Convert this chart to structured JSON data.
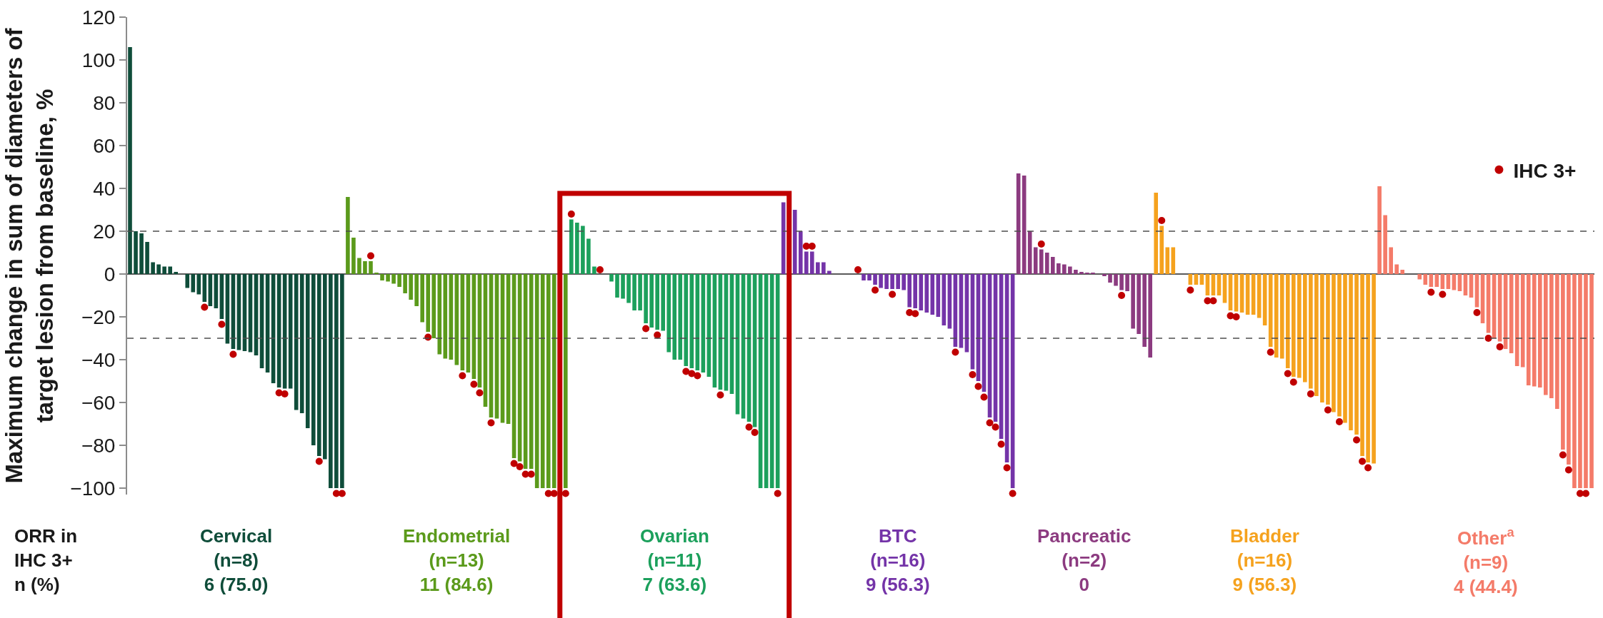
{
  "chart_data": {
    "type": "bar",
    "ylabel": "Maximum change in sum of diameters of\ntarget lesion from baseline, %",
    "categories": [
      null,
      null,
      null,
      null,
      null,
      null,
      null,
      null,
      null,
      null,
      null,
      null,
      null,
      null,
      null,
      null,
      null,
      null,
      null,
      null,
      null,
      null,
      null,
      null,
      null,
      null,
      null,
      null,
      null,
      null,
      null,
      null,
      null,
      null,
      null,
      null,
      null,
      null,
      null,
      null,
      null,
      null,
      null,
      null,
      null,
      null,
      null,
      null,
      null,
      null,
      null,
      null,
      null,
      null,
      null,
      null,
      null,
      null,
      null,
      null,
      null,
      null,
      null,
      null,
      null,
      null,
      null,
      null,
      null,
      null,
      null,
      null,
      null,
      null,
      null,
      null,
      null,
      null,
      null,
      null,
      null,
      null,
      null,
      null,
      null,
      null,
      null,
      null,
      null,
      null,
      null,
      null,
      null,
      null,
      null,
      null,
      null,
      null,
      null,
      null,
      null,
      null,
      null,
      null,
      null,
      null,
      null,
      null,
      null,
      null,
      null,
      null,
      null,
      null,
      null,
      null,
      null,
      null,
      null,
      null,
      null,
      null,
      null,
      null,
      null,
      null,
      null,
      null,
      null,
      null,
      null,
      null,
      null,
      null,
      null,
      null,
      null,
      null,
      null,
      null,
      null,
      null,
      null,
      null,
      null,
      null,
      null,
      null,
      null,
      null,
      null,
      null,
      null,
      null,
      null,
      null,
      null,
      null,
      null,
      null,
      null,
      null,
      null,
      null,
      null,
      null,
      null,
      null,
      null,
      null,
      null,
      null,
      null,
      null,
      null,
      null,
      null,
      null,
      null,
      null,
      null,
      null,
      null,
      null,
      null,
      null,
      null,
      null,
      null,
      null,
      null,
      null,
      null,
      null,
      null,
      null,
      null,
      null,
      null,
      null,
      null,
      null,
      null,
      null,
      null,
      null,
      null,
      null,
      null,
      null,
      null,
      null,
      null,
      null,
      null,
      null,
      null,
      null,
      null,
      null,
      null,
      null,
      null,
      null,
      null,
      null,
      null,
      null,
      null,
      null,
      null,
      null,
      null,
      null,
      null,
      null,
      null,
      null,
      null,
      null,
      null,
      null,
      null,
      null,
      null,
      null,
      null,
      null,
      null,
      null,
      null,
      null,
      null,
      null,
      null,
      null
    ],
    "series": [
      {
        "name": "Cervical\n(n=8)\n6 (75.0)",
        "color": "#0f4d3a",
        "values": [
          106,
          20,
          19,
          15,
          5.5,
          4.5,
          3.5,
          3.5,
          1,
          null,
          -6.5,
          -8.5,
          -9.5,
          -13,
          -15,
          -16,
          -21,
          -32.5,
          -35,
          -35.5,
          -36,
          -36.5,
          -38,
          -44,
          -46,
          -51,
          -53,
          -53.5,
          -53.5,
          -63.5,
          -65,
          -72,
          -80,
          -85,
          -86.5,
          -100,
          -100,
          -100,
          null,
          null,
          null,
          null,
          null,
          null,
          null,
          null,
          null,
          null,
          null,
          null,
          null,
          null,
          null,
          null,
          null,
          null,
          null,
          null,
          null,
          null,
          null,
          null,
          null,
          null,
          null,
          null,
          null,
          null,
          null,
          null,
          null,
          null,
          null,
          null,
          null,
          null,
          null,
          null,
          null,
          null,
          null,
          null,
          null,
          null,
          null,
          null,
          null,
          null,
          null,
          null,
          null,
          null,
          null,
          null,
          null,
          null,
          null,
          null,
          null,
          null,
          null,
          null,
          null,
          null,
          null,
          null,
          null,
          null,
          null,
          null,
          null,
          null,
          null,
          null,
          null,
          null,
          null,
          null,
          null,
          null,
          null,
          null,
          null,
          null,
          null,
          null,
          null,
          null,
          null,
          null,
          null,
          null,
          null,
          null,
          null,
          null,
          null,
          null,
          null,
          null,
          null,
          null,
          null,
          null,
          null,
          null,
          null,
          null,
          null,
          null,
          null,
          null,
          null,
          null,
          null,
          null,
          null,
          null,
          null,
          null,
          null,
          null,
          null,
          null,
          null,
          null,
          null,
          null,
          null,
          null,
          null,
          null,
          null,
          null,
          null,
          null,
          null,
          null,
          null,
          null,
          null,
          null,
          null,
          null,
          null,
          null,
          null,
          null,
          null,
          null,
          null,
          null,
          null,
          null,
          null,
          null,
          null,
          null,
          null,
          null,
          null,
          null,
          null,
          null,
          null,
          null,
          null,
          null,
          null,
          null,
          null,
          null,
          null,
          null,
          null,
          null,
          null,
          null,
          null,
          null,
          null,
          null,
          null,
          null,
          null,
          null,
          null,
          null,
          null,
          null,
          null,
          null,
          null,
          null,
          null,
          null,
          null,
          null,
          null,
          null,
          null,
          null,
          null,
          null,
          null,
          null,
          null,
          null,
          null,
          null,
          null,
          null,
          null,
          null,
          null,
          null
        ]
      },
      {
        "name": "Endometrial\n(n=13)\n11 (84.6)",
        "color": "#5b9a1b",
        "values": [
          null,
          null,
          null,
          null,
          null,
          null,
          null,
          null,
          null,
          null,
          null,
          null,
          null,
          null,
          null,
          null,
          null,
          null,
          null,
          null,
          null,
          null,
          null,
          null,
          null,
          null,
          null,
          null,
          null,
          null,
          null,
          null,
          null,
          null,
          null,
          null,
          null,
          null,
          36,
          17,
          7.5,
          6,
          6,
          0.5,
          -3,
          -3.5,
          -4.5,
          -6,
          -9,
          -12,
          -15,
          -22.5,
          -27,
          -30,
          -37.5,
          -39.5,
          -40,
          -42.5,
          -45,
          -46,
          -49,
          -53,
          -62,
          -67,
          -67.5,
          -69.5,
          -70,
          -86,
          -87.5,
          -91,
          -91,
          -100,
          -100,
          -100,
          -100,
          null,
          -100,
          null,
          null,
          null,
          null,
          null,
          null,
          null,
          null,
          null,
          null,
          null,
          null,
          null,
          null,
          null,
          null,
          null,
          null,
          null,
          null,
          null,
          null,
          null,
          null,
          null,
          null,
          null,
          null,
          null,
          null,
          null,
          null,
          null,
          null,
          null,
          null,
          null,
          null,
          null,
          null,
          null,
          null,
          null,
          null,
          null,
          null,
          null,
          null,
          null,
          null,
          null,
          null,
          null,
          null,
          null,
          null,
          null,
          null,
          null,
          null,
          null,
          null,
          null,
          null,
          null,
          null,
          null,
          null,
          null,
          null,
          null,
          null,
          null,
          null,
          null,
          null,
          null,
          null,
          null,
          null,
          null,
          null,
          null,
          null,
          null,
          null,
          null,
          null,
          null,
          null,
          null,
          null,
          null,
          null,
          null,
          null,
          null,
          null,
          null,
          null,
          null,
          null,
          null,
          null,
          null,
          null,
          null,
          null,
          null,
          null,
          null,
          null,
          null,
          null,
          null,
          null,
          null,
          null,
          null,
          null,
          null,
          null,
          null,
          null,
          null,
          null,
          null,
          null,
          null,
          null,
          null,
          null,
          null,
          null,
          null,
          null,
          null,
          null,
          null,
          null,
          null,
          null,
          null,
          null,
          null,
          null,
          null,
          null,
          null,
          null,
          null,
          null,
          null,
          null,
          null,
          null,
          null,
          null,
          null,
          null,
          null,
          null,
          null,
          null,
          null,
          null,
          null,
          null,
          null,
          null,
          null,
          null,
          null,
          null,
          null,
          null,
          null,
          null,
          null
        ]
      },
      {
        "name": "Ovarian\n(n=11)\n7 (63.6)",
        "color": "#1ca05c",
        "values": [
          null,
          null,
          null,
          null,
          null,
          null,
          null,
          null,
          null,
          null,
          null,
          null,
          null,
          null,
          null,
          null,
          null,
          null,
          null,
          null,
          null,
          null,
          null,
          null,
          null,
          null,
          null,
          null,
          null,
          null,
          null,
          null,
          null,
          null,
          null,
          null,
          null,
          null,
          null,
          null,
          null,
          null,
          null,
          null,
          null,
          null,
          null,
          null,
          null,
          null,
          null,
          null,
          null,
          null,
          null,
          null,
          null,
          null,
          null,
          null,
          null,
          null,
          null,
          null,
          null,
          null,
          null,
          null,
          null,
          null,
          null,
          null,
          null,
          null,
          null,
          null,
          null,
          25.5,
          24,
          22.5,
          16.5,
          3.5,
          null,
          null,
          -3.5,
          -11,
          -11.5,
          -13.5,
          -17,
          -17,
          -23,
          -25,
          -26,
          -26.5,
          -36.5,
          -40,
          -40,
          -43,
          -44,
          -45,
          -46,
          -48,
          -53,
          -54,
          -54.5,
          -56,
          -65.5,
          -67.5,
          -69,
          -71.5,
          -100,
          -100,
          -100,
          -100,
          null,
          null,
          null,
          null,
          null,
          null,
          null,
          null,
          null,
          null,
          null,
          null,
          null,
          null,
          null,
          null,
          null,
          null,
          null,
          null,
          null,
          null,
          null,
          null,
          null,
          null,
          null,
          null,
          null,
          null,
          null,
          null,
          null,
          null,
          null,
          null,
          null,
          null,
          null,
          null,
          null,
          null,
          null,
          null,
          null,
          null,
          null,
          null,
          null,
          null,
          null,
          null,
          null,
          null,
          null,
          null,
          null,
          null,
          null,
          null,
          null,
          null,
          null,
          null,
          null,
          null,
          null,
          null,
          null,
          null,
          null,
          null,
          null,
          null,
          null,
          null,
          null,
          null,
          null,
          null,
          null,
          null,
          null,
          null,
          null,
          null,
          null,
          null,
          null,
          null,
          null,
          null,
          null,
          null,
          null,
          null,
          null,
          null,
          null,
          null,
          null,
          null,
          null,
          null,
          null,
          null,
          null,
          null,
          null,
          null,
          null,
          null,
          null,
          null,
          null,
          null,
          null,
          null,
          null,
          null,
          null,
          null,
          null,
          null,
          null,
          null,
          null,
          null,
          null,
          null,
          null,
          null,
          null,
          null,
          null,
          null,
          null,
          null,
          null,
          null,
          null,
          null
        ]
      },
      {
        "name": "BTC\n(n=16)\n9 (56.3)",
        "color": "#7434a8",
        "values": [
          null,
          null,
          null,
          null,
          null,
          null,
          null,
          null,
          null,
          null,
          null,
          null,
          null,
          null,
          null,
          null,
          null,
          null,
          null,
          null,
          null,
          null,
          null,
          null,
          null,
          null,
          null,
          null,
          null,
          null,
          null,
          null,
          null,
          null,
          null,
          null,
          null,
          null,
          null,
          null,
          null,
          null,
          null,
          null,
          null,
          null,
          null,
          null,
          null,
          null,
          null,
          null,
          null,
          null,
          null,
          null,
          null,
          null,
          null,
          null,
          null,
          null,
          null,
          null,
          null,
          null,
          null,
          null,
          null,
          null,
          null,
          null,
          null,
          null,
          null,
          null,
          null,
          null,
          null,
          null,
          null,
          null,
          null,
          null,
          null,
          null,
          null,
          null,
          null,
          null,
          null,
          null,
          null,
          null,
          null,
          null,
          null,
          null,
          null,
          null,
          null,
          null,
          null,
          null,
          null,
          null,
          null,
          null,
          null,
          null,
          null,
          null,
          null,
          null,
          33.5,
          null,
          30,
          20,
          10.5,
          10.5,
          5.5,
          5.5,
          1.5,
          null,
          null,
          null,
          null,
          null,
          -3,
          -3,
          -5,
          -6.5,
          -7,
          -7,
          -7,
          -7.5,
          -15.5,
          -16,
          -17,
          -18,
          -19,
          -20,
          -24,
          -25.5,
          -34,
          -34.5,
          -36.5,
          -44.5,
          -50,
          -55,
          -67,
          -69,
          -77,
          -88,
          -100,
          null,
          null,
          null,
          null,
          null,
          null,
          null,
          null,
          null,
          null,
          null,
          null,
          null,
          null,
          null,
          null,
          null,
          null,
          null,
          null,
          null,
          null,
          null,
          null,
          null,
          null,
          null,
          null,
          null,
          null,
          null,
          null,
          null,
          null,
          null,
          null,
          null,
          null,
          null,
          null,
          null,
          null,
          null,
          null,
          null,
          null,
          null,
          null,
          null,
          null,
          null,
          null,
          null,
          null,
          null,
          null,
          null,
          null,
          null,
          null,
          null,
          null,
          null,
          null,
          null,
          null,
          null,
          null,
          null,
          null,
          null,
          null,
          null,
          null,
          null,
          null,
          null,
          null,
          null,
          null,
          null,
          null,
          null,
          null,
          null,
          null,
          null,
          null,
          null,
          null,
          null,
          null,
          null,
          null,
          null,
          null,
          null,
          null,
          null,
          null,
          null
        ]
      },
      {
        "name": "Pancreatic\n(n=2)\n0",
        "color": "#8c3b80",
        "values": [
          null,
          null,
          null,
          null,
          null,
          null,
          null,
          null,
          null,
          null,
          null,
          null,
          null,
          null,
          null,
          null,
          null,
          null,
          null,
          null,
          null,
          null,
          null,
          null,
          null,
          null,
          null,
          null,
          null,
          null,
          null,
          null,
          null,
          null,
          null,
          null,
          null,
          null,
          null,
          null,
          null,
          null,
          null,
          null,
          null,
          null,
          null,
          null,
          null,
          null,
          null,
          null,
          null,
          null,
          null,
          null,
          null,
          null,
          null,
          null,
          null,
          null,
          null,
          null,
          null,
          null,
          null,
          null,
          null,
          null,
          null,
          null,
          null,
          null,
          null,
          null,
          null,
          null,
          null,
          null,
          null,
          null,
          null,
          null,
          null,
          null,
          null,
          null,
          null,
          null,
          null,
          null,
          null,
          null,
          null,
          null,
          null,
          null,
          null,
          null,
          null,
          null,
          null,
          null,
          null,
          null,
          null,
          null,
          null,
          null,
          null,
          null,
          null,
          null,
          null,
          null,
          null,
          null,
          null,
          null,
          null,
          null,
          null,
          null,
          null,
          null,
          null,
          null,
          null,
          null,
          null,
          null,
          null,
          null,
          null,
          null,
          null,
          null,
          null,
          null,
          null,
          null,
          null,
          null,
          null,
          null,
          null,
          null,
          null,
          null,
          null,
          null,
          null,
          null,
          null,
          47,
          46,
          20,
          12.5,
          11.5,
          10,
          8,
          5,
          4.5,
          3.5,
          2,
          1,
          0.5,
          0.5,
          null,
          -1,
          -4,
          -5.5,
          -7.5,
          -8,
          -25.5,
          -28,
          -34,
          -39,
          null,
          null,
          null,
          null,
          null,
          null,
          null,
          null,
          null,
          null,
          null,
          null,
          null,
          null,
          null,
          null,
          null,
          null,
          null,
          null,
          null,
          null,
          null,
          null,
          null,
          null,
          null,
          null,
          null,
          null,
          null,
          null,
          null,
          null,
          null,
          null,
          null,
          null,
          null,
          null,
          null,
          null,
          null,
          null,
          null,
          null,
          null,
          null,
          null,
          null,
          null,
          null,
          null,
          null,
          null,
          null,
          null,
          null,
          null,
          null,
          null,
          null,
          null,
          null,
          null,
          null,
          null,
          null,
          null,
          null,
          null,
          null,
          null,
          null,
          null,
          null,
          null
        ]
      },
      {
        "name": "Bladder\n(n=16)\n9 (56.3)",
        "color": "#f5a21e",
        "values": [
          null,
          null,
          null,
          null,
          null,
          null,
          null,
          null,
          null,
          null,
          null,
          null,
          null,
          null,
          null,
          null,
          null,
          null,
          null,
          null,
          null,
          null,
          null,
          null,
          null,
          null,
          null,
          null,
          null,
          null,
          null,
          null,
          null,
          null,
          null,
          null,
          null,
          null,
          null,
          null,
          null,
          null,
          null,
          null,
          null,
          null,
          null,
          null,
          null,
          null,
          null,
          null,
          null,
          null,
          null,
          null,
          null,
          null,
          null,
          null,
          null,
          null,
          null,
          null,
          null,
          null,
          null,
          null,
          null,
          null,
          null,
          null,
          null,
          null,
          null,
          null,
          null,
          null,
          null,
          null,
          null,
          null,
          null,
          null,
          null,
          null,
          null,
          null,
          null,
          null,
          null,
          null,
          null,
          null,
          null,
          null,
          null,
          null,
          null,
          null,
          null,
          null,
          null,
          null,
          null,
          null,
          null,
          null,
          null,
          null,
          null,
          null,
          null,
          null,
          null,
          null,
          null,
          null,
          null,
          null,
          null,
          null,
          null,
          null,
          null,
          null,
          null,
          null,
          null,
          null,
          null,
          null,
          null,
          null,
          null,
          null,
          null,
          null,
          null,
          null,
          null,
          null,
          null,
          null,
          null,
          null,
          null,
          null,
          null,
          null,
          null,
          null,
          null,
          null,
          null,
          null,
          null,
          null,
          null,
          null,
          null,
          null,
          null,
          null,
          null,
          null,
          null,
          null,
          null,
          null,
          null,
          null,
          null,
          null,
          null,
          null,
          null,
          null,
          null,
          38,
          22.5,
          12.5,
          12.5,
          null,
          null,
          -5,
          -5,
          -5,
          -10,
          -10,
          -10,
          -13.5,
          -17,
          -17.5,
          -18,
          -19,
          -19,
          -20.5,
          -24,
          -34,
          -39,
          -39.5,
          -44,
          -48,
          -48.5,
          -50.5,
          -53.5,
          -57,
          -60,
          -61,
          -64.5,
          -66.5,
          -69.5,
          -73,
          -75,
          -85,
          -88,
          -88.5,
          null,
          null,
          null,
          null,
          null,
          null,
          null,
          null,
          null,
          null,
          null,
          null,
          null,
          null,
          null,
          null,
          null,
          null,
          null,
          null,
          null,
          null,
          null,
          null,
          null,
          null,
          null,
          null,
          null,
          null,
          null,
          null,
          null,
          null,
          null,
          null,
          null,
          null
        ]
      },
      {
        "name": "Other$^{a}$\n(n=9)\n4 (44.4)",
        "color": "#f47b69",
        "values": [
          null,
          null,
          null,
          null,
          null,
          null,
          null,
          null,
          null,
          null,
          null,
          null,
          null,
          null,
          null,
          null,
          null,
          null,
          null,
          null,
          null,
          null,
          null,
          null,
          null,
          null,
          null,
          null,
          null,
          null,
          null,
          null,
          null,
          null,
          null,
          null,
          null,
          null,
          null,
          null,
          null,
          null,
          null,
          null,
          null,
          null,
          null,
          null,
          null,
          null,
          null,
          null,
          null,
          null,
          null,
          null,
          null,
          null,
          null,
          null,
          null,
          null,
          null,
          null,
          null,
          null,
          null,
          null,
          null,
          null,
          null,
          null,
          null,
          null,
          null,
          null,
          null,
          null,
          null,
          null,
          null,
          null,
          null,
          null,
          null,
          null,
          null,
          null,
          null,
          null,
          null,
          null,
          null,
          null,
          null,
          null,
          null,
          null,
          null,
          null,
          null,
          null,
          null,
          null,
          null,
          null,
          null,
          null,
          null,
          null,
          null,
          null,
          null,
          null,
          null,
          null,
          null,
          null,
          null,
          null,
          null,
          null,
          null,
          null,
          null,
          null,
          null,
          null,
          null,
          null,
          null,
          null,
          null,
          null,
          null,
          null,
          null,
          null,
          null,
          null,
          null,
          null,
          null,
          null,
          null,
          null,
          null,
          null,
          null,
          null,
          null,
          null,
          null,
          null,
          null,
          null,
          null,
          null,
          null,
          null,
          null,
          null,
          null,
          null,
          null,
          null,
          null,
          null,
          null,
          null,
          null,
          null,
          null,
          null,
          null,
          null,
          null,
          null,
          null,
          null,
          null,
          null,
          null,
          null,
          null,
          null,
          null,
          null,
          null,
          null,
          null,
          null,
          null,
          null,
          null,
          null,
          null,
          null,
          null,
          null,
          null,
          null,
          null,
          null,
          null,
          null,
          null,
          null,
          null,
          null,
          null,
          null,
          null,
          null,
          null,
          null,
          null,
          null,
          41,
          27.5,
          12.5,
          4.5,
          2,
          null,
          null,
          -2.5,
          -5,
          -6,
          -6,
          -7,
          -7,
          -7.5,
          -8,
          -10,
          -11,
          -15.5,
          -23,
          -27.5,
          -30,
          -31.5,
          -35,
          -37,
          -43,
          -43.5,
          -52,
          -52.5,
          -53,
          -56.5,
          -58,
          -63,
          -82,
          -89,
          -100,
          -100,
          -100,
          -100
        ]
      },
      {
        "name": "IHC 3+",
        "type": "scatter",
        "color": "#c00000",
        "values": [
          null,
          null,
          null,
          null,
          null,
          null,
          null,
          null,
          null,
          null,
          null,
          null,
          null,
          -15.5,
          null,
          null,
          -23.5,
          null,
          -37.5,
          null,
          null,
          null,
          null,
          null,
          null,
          null,
          -55.5,
          -56,
          null,
          null,
          null,
          null,
          null,
          -87.5,
          null,
          null,
          -102.5,
          -102.5,
          null,
          null,
          null,
          null,
          8.5,
          null,
          null,
          null,
          null,
          null,
          null,
          null,
          null,
          null,
          -29.5,
          null,
          null,
          null,
          null,
          null,
          -47.5,
          null,
          -51.5,
          -55.5,
          null,
          -69.5,
          null,
          null,
          null,
          -88.5,
          -90,
          -93.5,
          -93.5,
          null,
          null,
          -102.5,
          -102.5,
          null,
          -102.5,
          28,
          null,
          null,
          null,
          null,
          2,
          null,
          null,
          null,
          null,
          null,
          null,
          null,
          -25.5,
          null,
          -28.5,
          null,
          null,
          null,
          null,
          -45.5,
          -46.5,
          -47.5,
          null,
          null,
          null,
          -56.5,
          null,
          null,
          null,
          null,
          -71.5,
          -74,
          null,
          null,
          null,
          -102.5,
          null,
          null,
          null,
          null,
          13,
          13,
          null,
          null,
          null,
          null,
          null,
          null,
          null,
          2,
          null,
          null,
          -7.5,
          null,
          null,
          -9.5,
          null,
          null,
          -18,
          -18.5,
          null,
          null,
          null,
          null,
          null,
          null,
          -36.5,
          null,
          null,
          -47,
          -52.5,
          -57.5,
          -69.5,
          -71.5,
          -79.5,
          -90.5,
          -102.5,
          null,
          null,
          null,
          null,
          14,
          null,
          null,
          null,
          null,
          null,
          null,
          null,
          null,
          null,
          null,
          null,
          null,
          null,
          -10,
          null,
          null,
          null,
          null,
          null,
          null,
          25,
          null,
          null,
          null,
          null,
          -7.5,
          null,
          null,
          -12.5,
          -12.5,
          null,
          null,
          -19.5,
          -20,
          null,
          null,
          null,
          null,
          null,
          -36.5,
          null,
          null,
          -46.5,
          -50.5,
          null,
          null,
          -56,
          null,
          null,
          -63.5,
          null,
          -69,
          null,
          null,
          -77.5,
          -87.5,
          -90.5,
          null,
          null,
          null,
          null,
          null,
          null,
          null,
          null,
          null,
          null,
          -8.5,
          null,
          -9.5,
          null,
          null,
          null,
          null,
          null,
          -18,
          null,
          -30,
          null,
          -34,
          null,
          null,
          null,
          null,
          null,
          null,
          null,
          null,
          null,
          null,
          -84.5,
          -91.5,
          null,
          -102.5,
          -102.5,
          null
        ]
      }
    ],
    "ylim": [
      -103,
      120
    ],
    "yticks": [
      -100,
      -80,
      -60,
      -40,
      -20,
      0,
      20,
      40,
      60,
      80,
      100,
      120
    ],
    "ref_lines": [
      {
        "axis": "y",
        "value": 20,
        "line_style": "dashed",
        "color": "#4d4d4d"
      },
      {
        "axis": "y",
        "value": -30,
        "line_style": "dashed",
        "color": "#4d4d4d"
      }
    ],
    "annotations": [
      "ORR in\nIHC 3+\nn (%)"
    ],
    "legend": "right",
    "marker": "circle",
    "tick_labels": "y"
  }
}
